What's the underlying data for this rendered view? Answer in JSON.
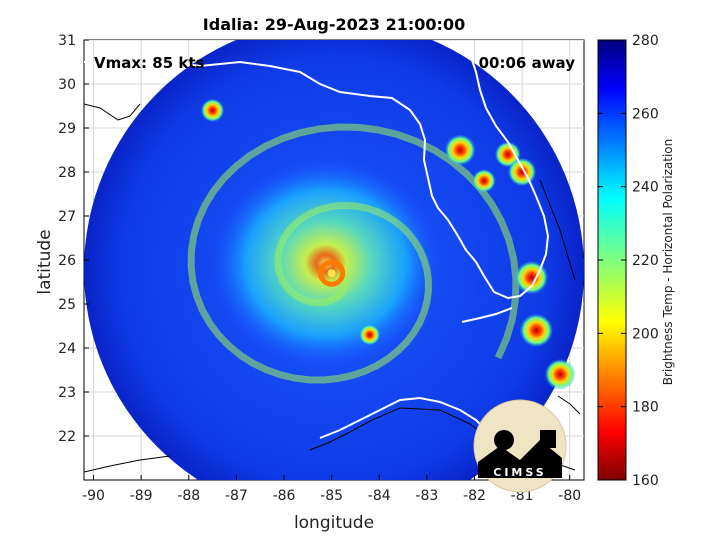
{
  "title": "Idalia: 29-Aug-2023 21:00:00",
  "vmax": "Vmax: 85 kts",
  "time_away": "00:06 away",
  "xlabel": "longitude",
  "ylabel": "latitude",
  "x_ticks": [
    "-90",
    "-89",
    "-88",
    "-87",
    "-86",
    "-85",
    "-84",
    "-83",
    "-82",
    "-81",
    "-80"
  ],
  "y_ticks": [
    "22",
    "23",
    "24",
    "25",
    "26",
    "27",
    "28",
    "29",
    "30",
    "31"
  ],
  "colorbar": {
    "label": "Brightness Temp - Horizontal Polarization",
    "ticks": [
      "160",
      "180",
      "200",
      "220",
      "240",
      "260",
      "280"
    ],
    "range": [
      160,
      280
    ]
  },
  "logo_text": "CIMSS",
  "map": {
    "lon_range": [
      -90.2,
      -79.7
    ],
    "lat_range": [
      21.0,
      31.0
    ],
    "storm_center": {
      "lon": -85.0,
      "lat": 25.7
    },
    "convective_cells": [
      {
        "lon": -87.5,
        "lat": 29.4,
        "value": 205
      },
      {
        "lon": -82.3,
        "lat": 28.5,
        "value": 190
      },
      {
        "lon": -81.3,
        "lat": 28.4,
        "value": 200
      },
      {
        "lon": -81.0,
        "lat": 28.0,
        "value": 195
      },
      {
        "lon": -81.8,
        "lat": 27.8,
        "value": 205
      },
      {
        "lon": -80.8,
        "lat": 25.6,
        "value": 185
      },
      {
        "lon": -80.7,
        "lat": 24.4,
        "value": 185
      },
      {
        "lon": -80.2,
        "lat": 23.4,
        "value": 190
      },
      {
        "lon": -84.2,
        "lat": 24.3,
        "value": 210
      }
    ],
    "colors": {
      "background_cold": "#0a2ad8",
      "warm_ring": "#ff7a00",
      "eye": "#ffe54a",
      "coastline": "#ffffff",
      "border": "#000000"
    }
  }
}
